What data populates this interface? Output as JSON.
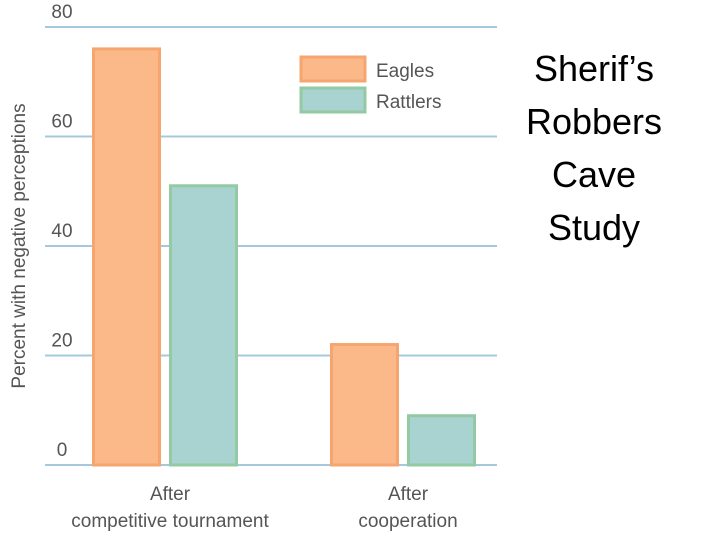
{
  "chart_data": {
    "type": "bar",
    "title": [
      "Sherif’s",
      "Robbers",
      "Cave",
      "Study"
    ],
    "y_label": "Percent with negative perceptions",
    "categories": [
      [
        "After",
        "competitive tournament"
      ],
      [
        "After",
        "cooperation"
      ]
    ],
    "series": [
      {
        "name": "Eagles",
        "color": "#fbb98a",
        "edgecolor": "#f6a56f",
        "values": [
          76,
          22
        ]
      },
      {
        "name": "Rattlers",
        "color": "#a9d3d1",
        "edgecolor": "#93c9a3",
        "values": [
          51,
          9
        ]
      }
    ],
    "ylim": [
      0,
      80
    ],
    "yticks": [
      0,
      20,
      40,
      60,
      80
    ],
    "grid": true,
    "legend": "upper right"
  }
}
